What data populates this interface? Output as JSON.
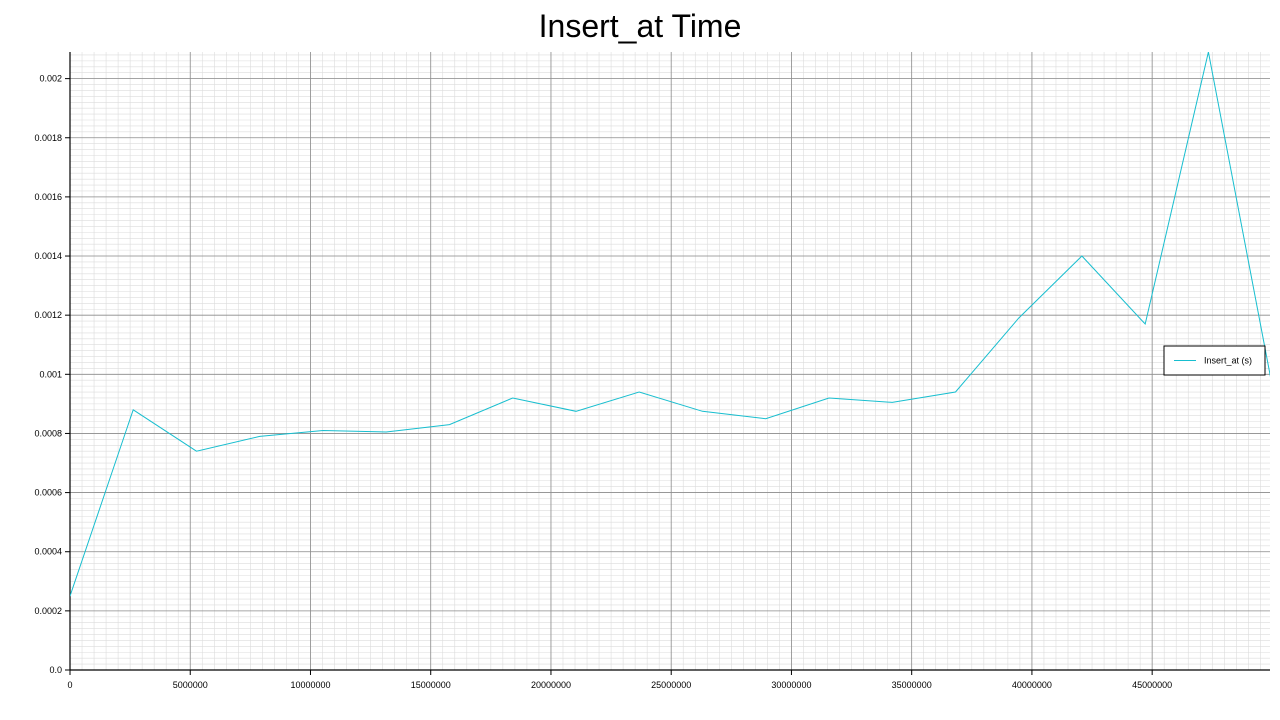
{
  "chart_data": {
    "type": "line",
    "title": "Insert_at Time",
    "xlabel": "",
    "ylabel": "",
    "xlim": [
      0,
      49900000
    ],
    "ylim": [
      0,
      0.00209
    ],
    "x_ticks": [
      0,
      5000000,
      10000000,
      15000000,
      20000000,
      25000000,
      30000000,
      35000000,
      40000000,
      45000000
    ],
    "y_ticks": [
      0.0,
      0.0002,
      0.0004,
      0.0006,
      0.0008,
      0.001,
      0.0012,
      0.0014,
      0.0016,
      0.0018,
      0.002
    ],
    "x_tick_labels": [
      "0",
      "5000000",
      "10000000",
      "15000000",
      "20000000",
      "25000000",
      "30000000",
      "35000000",
      "40000000",
      "45000000"
    ],
    "y_tick_labels": [
      "0.0",
      "0.0002",
      "0.0004",
      "0.0006",
      "0.0008",
      "0.001",
      "0.0012",
      "0.0014",
      "0.0016",
      "0.0018",
      "0.002"
    ],
    "grid": true,
    "legend_position": "right",
    "series": [
      {
        "name": "Insert_at (s)",
        "color": "#17becf",
        "x": [
          0,
          2630000,
          5260000,
          7890000,
          10520000,
          13150000,
          15780000,
          18410000,
          21040000,
          23670000,
          26300000,
          28930000,
          31560000,
          34190000,
          36820000,
          39450000,
          42080000,
          44710000,
          47340000,
          49970000
        ],
        "y": [
          0.00025,
          0.00088,
          0.00074,
          0.00079,
          0.00081,
          0.000805,
          0.00083,
          0.00092,
          0.000875,
          0.00094,
          0.000875,
          0.00085,
          0.00092,
          0.000905,
          0.00094,
          0.00119,
          0.0014,
          0.00117,
          0.00209,
          0.00097
        ]
      }
    ]
  }
}
